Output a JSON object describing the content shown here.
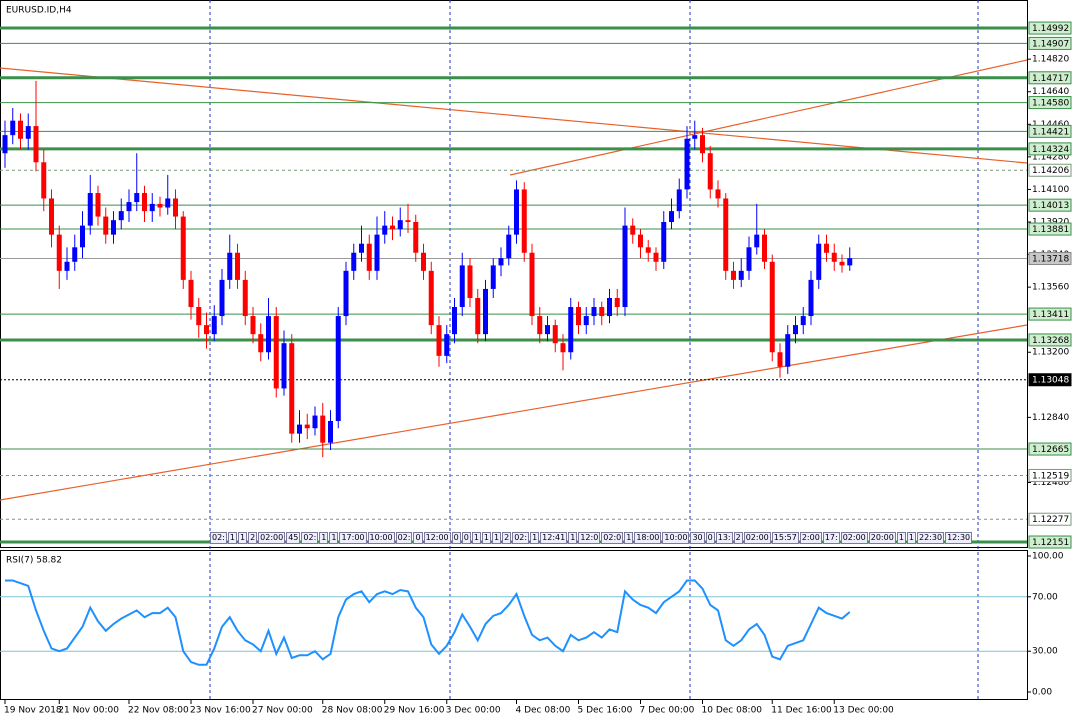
{
  "chart_data": {
    "type": "candlestick",
    "title": "EURUSD.ID,H4",
    "bull_color": "#0000ff",
    "bear_color": "#ff0000",
    "ylim": [
      1.12118,
      1.15147
    ],
    "yticks": [
      {
        "value": 1.1482,
        "label": "1.14820"
      },
      {
        "value": 1.1464,
        "label": "1.14640"
      },
      {
        "value": 1.1446,
        "label": "1.14460"
      },
      {
        "value": 1.1428,
        "label": "1.14280"
      },
      {
        "value": 1.141,
        "label": "1.14100"
      },
      {
        "value": 1.1392,
        "label": "1.13920"
      },
      {
        "value": 1.1374,
        "label": "1.13740"
      },
      {
        "value": 1.1356,
        "label": "1.13560"
      },
      {
        "value": 1.132,
        "label": "1.13200"
      },
      {
        "value": 1.1284,
        "label": "1.12840"
      },
      {
        "value": 1.1248,
        "label": "1.12480"
      }
    ],
    "levels": [
      {
        "value": 1.14992,
        "style": "thick"
      },
      {
        "value": 1.14907,
        "style": "thin"
      },
      {
        "value": 1.14717,
        "style": "thick"
      },
      {
        "value": 1.1458,
        "label": "1.14580",
        "style": "thin"
      },
      {
        "value": 1.14421,
        "style": "thin"
      },
      {
        "value": 1.14324,
        "style": "thick"
      },
      {
        "value": 1.14206,
        "style": "dotted"
      },
      {
        "value": 1.14013,
        "style": "thin"
      },
      {
        "value": 1.13881,
        "style": "thin"
      },
      {
        "value": 1.13718,
        "style": "current"
      },
      {
        "value": 1.13411,
        "style": "thin"
      },
      {
        "value": 1.13268,
        "style": "thick"
      },
      {
        "value": 1.13048,
        "style": "dashed-black"
      },
      {
        "value": 1.12665,
        "style": "thin"
      },
      {
        "value": 1.12519,
        "style": "dotted"
      },
      {
        "value": 1.12277,
        "style": "dotted"
      },
      {
        "value": 1.12151,
        "style": "thick"
      }
    ],
    "xticks": [
      {
        "value": 0,
        "label": "19 Nov 2018"
      },
      {
        "value": 7,
        "label": "21 Nov 00:00"
      },
      {
        "value": 16,
        "label": "22 Nov 08:00"
      },
      {
        "value": 24,
        "label": "23 Nov 16:00"
      },
      {
        "value": 32,
        "label": "27 Nov 00:00"
      },
      {
        "value": 41,
        "label": "28 Nov 08:00"
      },
      {
        "value": 49,
        "label": "29 Nov 16:00"
      },
      {
        "value": 57,
        "label": "3 Dec 00:00"
      },
      {
        "value": 66,
        "label": "4 Dec 08:00"
      },
      {
        "value": 74,
        "label": "5 Dec 16:00"
      },
      {
        "value": 82,
        "label": "7 Dec 00:00"
      },
      {
        "value": 90,
        "label": "10 Dec 08:00"
      },
      {
        "value": 99,
        "label": "11 Dec 16:00"
      },
      {
        "value": 107,
        "label": "13 Dec 00:00"
      }
    ],
    "time_strip": [
      "02:",
      "1",
      "1",
      "2",
      "02:00",
      "45",
      "02:",
      "1",
      "1",
      "17:00",
      "10:00",
      "02:",
      "0",
      "12:00",
      "0",
      "0",
      "1",
      "1",
      "1",
      "2",
      "02:",
      "1",
      "12:41",
      "1",
      "12:0",
      "02:0",
      "1",
      "18:00",
      "10:00",
      "30",
      "0",
      "13:",
      "2",
      "02:00",
      "15:57",
      "2:00",
      "17:",
      "02:00",
      "20:00",
      "1",
      "1",
      "22:30",
      "12:30"
    ],
    "candles": [
      [
        1.143,
        1.1448,
        1.1422,
        1.144
      ],
      [
        1.144,
        1.1455,
        1.1435,
        1.1448
      ],
      [
        1.1448,
        1.1452,
        1.1432,
        1.1438
      ],
      [
        1.1438,
        1.1452,
        1.1432,
        1.1445
      ],
      [
        1.1445,
        1.147,
        1.142,
        1.1425
      ],
      [
        1.1425,
        1.1432,
        1.1398,
        1.1405
      ],
      [
        1.1405,
        1.141,
        1.1378,
        1.1385
      ],
      [
        1.1385,
        1.139,
        1.1355,
        1.1365
      ],
      [
        1.1365,
        1.1378,
        1.136,
        1.137
      ],
      [
        1.137,
        1.1385,
        1.1365,
        1.1378
      ],
      [
        1.1378,
        1.1398,
        1.1372,
        1.139
      ],
      [
        1.139,
        1.1418,
        1.1385,
        1.1408
      ],
      [
        1.1408,
        1.1412,
        1.139,
        1.1395
      ],
      [
        1.1395,
        1.14,
        1.138,
        1.1385
      ],
      [
        1.1385,
        1.1398,
        1.138,
        1.1393
      ],
      [
        1.1393,
        1.1405,
        1.1388,
        1.1398
      ],
      [
        1.1398,
        1.141,
        1.1392,
        1.1403
      ],
      [
        1.1403,
        1.143,
        1.1398,
        1.1408
      ],
      [
        1.1408,
        1.1412,
        1.1392,
        1.1398
      ],
      [
        1.1398,
        1.1408,
        1.1392,
        1.1402
      ],
      [
        1.1402,
        1.1406,
        1.1395,
        1.14
      ],
      [
        1.14,
        1.1418,
        1.1396,
        1.1405
      ],
      [
        1.1405,
        1.141,
        1.1388,
        1.1395
      ],
      [
        1.1395,
        1.1398,
        1.1355,
        1.136
      ],
      [
        1.136,
        1.1365,
        1.1338,
        1.1345
      ],
      [
        1.1345,
        1.135,
        1.1328,
        1.1335
      ],
      [
        1.1335,
        1.1342,
        1.1322,
        1.133
      ],
      [
        1.133,
        1.1346,
        1.1326,
        1.134
      ],
      [
        1.134,
        1.1366,
        1.1335,
        1.136
      ],
      [
        1.136,
        1.1385,
        1.1355,
        1.1375
      ],
      [
        1.1375,
        1.138,
        1.1355,
        1.136
      ],
      [
        1.136,
        1.1365,
        1.1335,
        1.134
      ],
      [
        1.134,
        1.1345,
        1.1325,
        1.133
      ],
      [
        1.133,
        1.1336,
        1.1315,
        1.132
      ],
      [
        1.132,
        1.135,
        1.1316,
        1.134
      ],
      [
        1.134,
        1.1345,
        1.1295,
        1.13
      ],
      [
        1.13,
        1.1332,
        1.1296,
        1.1325
      ],
      [
        1.1325,
        1.133,
        1.127,
        1.1275
      ],
      [
        1.1275,
        1.1288,
        1.127,
        1.128
      ],
      [
        1.128,
        1.1286,
        1.1272,
        1.1278
      ],
      [
        1.1278,
        1.129,
        1.1274,
        1.1285
      ],
      [
        1.1285,
        1.1292,
        1.1262,
        1.127
      ],
      [
        1.127,
        1.1288,
        1.1266,
        1.1282
      ],
      [
        1.1282,
        1.1345,
        1.1278,
        1.134
      ],
      [
        1.134,
        1.137,
        1.1335,
        1.1365
      ],
      [
        1.1365,
        1.138,
        1.136,
        1.1375
      ],
      [
        1.1375,
        1.139,
        1.137,
        1.138
      ],
      [
        1.138,
        1.1385,
        1.136,
        1.1365
      ],
      [
        1.1365,
        1.1395,
        1.136,
        1.1385
      ],
      [
        1.1385,
        1.1398,
        1.138,
        1.139
      ],
      [
        1.139,
        1.1395,
        1.1382,
        1.1388
      ],
      [
        1.1388,
        1.14,
        1.1384,
        1.1393
      ],
      [
        1.1393,
        1.1402,
        1.1386,
        1.1392
      ],
      [
        1.1392,
        1.1396,
        1.137,
        1.1375
      ],
      [
        1.1375,
        1.138,
        1.136,
        1.1365
      ],
      [
        1.1365,
        1.137,
        1.133,
        1.1335
      ],
      [
        1.1335,
        1.134,
        1.1312,
        1.1318
      ],
      [
        1.1318,
        1.1335,
        1.1314,
        1.133
      ],
      [
        1.133,
        1.135,
        1.1325,
        1.1345
      ],
      [
        1.1345,
        1.1375,
        1.134,
        1.1368
      ],
      [
        1.1368,
        1.1372,
        1.1345,
        1.135
      ],
      [
        1.135,
        1.1355,
        1.1325,
        1.133
      ],
      [
        1.133,
        1.136,
        1.1326,
        1.1355
      ],
      [
        1.1355,
        1.1372,
        1.135,
        1.1368
      ],
      [
        1.1368,
        1.1378,
        1.1362,
        1.1372
      ],
      [
        1.1372,
        1.139,
        1.1368,
        1.1385
      ],
      [
        1.1385,
        1.1415,
        1.138,
        1.141
      ],
      [
        1.141,
        1.1414,
        1.137,
        1.1375
      ],
      [
        1.1375,
        1.138,
        1.1335,
        1.134
      ],
      [
        1.134,
        1.1345,
        1.1325,
        1.133
      ],
      [
        1.133,
        1.134,
        1.1326,
        1.1335
      ],
      [
        1.1335,
        1.1338,
        1.132,
        1.1325
      ],
      [
        1.1325,
        1.133,
        1.131,
        1.132
      ],
      [
        1.132,
        1.135,
        1.1316,
        1.1345
      ],
      [
        1.1345,
        1.1348,
        1.133,
        1.1335
      ],
      [
        1.1335,
        1.1345,
        1.133,
        1.134
      ],
      [
        1.134,
        1.135,
        1.1335,
        1.1345
      ],
      [
        1.1345,
        1.1348,
        1.1335,
        1.134
      ],
      [
        1.134,
        1.1355,
        1.1336,
        1.135
      ],
      [
        1.135,
        1.1355,
        1.134,
        1.1345
      ],
      [
        1.1345,
        1.14,
        1.134,
        1.139
      ],
      [
        1.139,
        1.1394,
        1.138,
        1.1385
      ],
      [
        1.1385,
        1.1388,
        1.1372,
        1.1378
      ],
      [
        1.1378,
        1.1382,
        1.137,
        1.1375
      ],
      [
        1.1375,
        1.1378,
        1.1365,
        1.137
      ],
      [
        1.137,
        1.1398,
        1.1366,
        1.1392
      ],
      [
        1.1392,
        1.1405,
        1.1388,
        1.1398
      ],
      [
        1.1398,
        1.1416,
        1.1394,
        1.141
      ],
      [
        1.141,
        1.1445,
        1.1405,
        1.1438
      ],
      [
        1.1438,
        1.1448,
        1.1432,
        1.144
      ],
      [
        1.144,
        1.1444,
        1.1425,
        1.143
      ],
      [
        1.143,
        1.1434,
        1.1405,
        1.141
      ],
      [
        1.141,
        1.1415,
        1.14,
        1.1405
      ],
      [
        1.1405,
        1.1408,
        1.136,
        1.1365
      ],
      [
        1.1365,
        1.137,
        1.1355,
        1.136
      ],
      [
        1.136,
        1.1372,
        1.1356,
        1.1365
      ],
      [
        1.1365,
        1.1384,
        1.136,
        1.1378
      ],
      [
        1.1378,
        1.1402,
        1.1374,
        1.1385
      ],
      [
        1.1385,
        1.1388,
        1.1366,
        1.137
      ],
      [
        1.137,
        1.1374,
        1.1315,
        1.132
      ],
      [
        1.132,
        1.1325,
        1.1306,
        1.1312
      ],
      [
        1.1312,
        1.1335,
        1.1308,
        1.133
      ],
      [
        1.133,
        1.134,
        1.1325,
        1.1335
      ],
      [
        1.1335,
        1.1345,
        1.133,
        1.134
      ],
      [
        1.134,
        1.1365,
        1.1335,
        1.136
      ],
      [
        1.136,
        1.1385,
        1.1355,
        1.138
      ],
      [
        1.138,
        1.1385,
        1.137,
        1.1375
      ],
      [
        1.1375,
        1.138,
        1.1365,
        1.137
      ],
      [
        1.137,
        1.1374,
        1.1364,
        1.1368
      ],
      [
        1.1368,
        1.1378,
        1.1365,
        1.1372
      ]
    ],
    "rsi": {
      "title": "RSI(7) 58.82",
      "color": "#1e90ff",
      "ylim": [
        0,
        100
      ],
      "yticks": [
        {
          "value": 100,
          "label": "100.00"
        },
        {
          "value": 70,
          "label": "70.00"
        },
        {
          "value": 30,
          "label": "30.00"
        },
        {
          "value": 0,
          "label": "0.00"
        }
      ],
      "levels": [
        70,
        30
      ],
      "values": [
        82,
        82,
        80,
        78,
        60,
        45,
        32,
        30,
        32,
        40,
        48,
        62,
        52,
        45,
        50,
        54,
        57,
        60,
        55,
        58,
        58,
        62,
        55,
        30,
        22,
        20,
        20,
        32,
        48,
        55,
        45,
        38,
        35,
        30,
        45,
        28,
        40,
        25,
        27,
        27,
        30,
        24,
        28,
        55,
        68,
        72,
        74,
        66,
        72,
        74,
        72,
        75,
        74,
        62,
        55,
        35,
        28,
        34,
        44,
        57,
        48,
        38,
        50,
        56,
        58,
        64,
        72,
        56,
        42,
        38,
        40,
        34,
        30,
        42,
        38,
        40,
        44,
        40,
        46,
        44,
        74,
        68,
        64,
        62,
        58,
        66,
        70,
        74,
        82,
        82,
        76,
        64,
        60,
        38,
        34,
        38,
        46,
        50,
        42,
        26,
        24,
        34,
        36,
        38,
        50,
        62,
        58,
        56,
        54,
        58.82
      ]
    }
  }
}
